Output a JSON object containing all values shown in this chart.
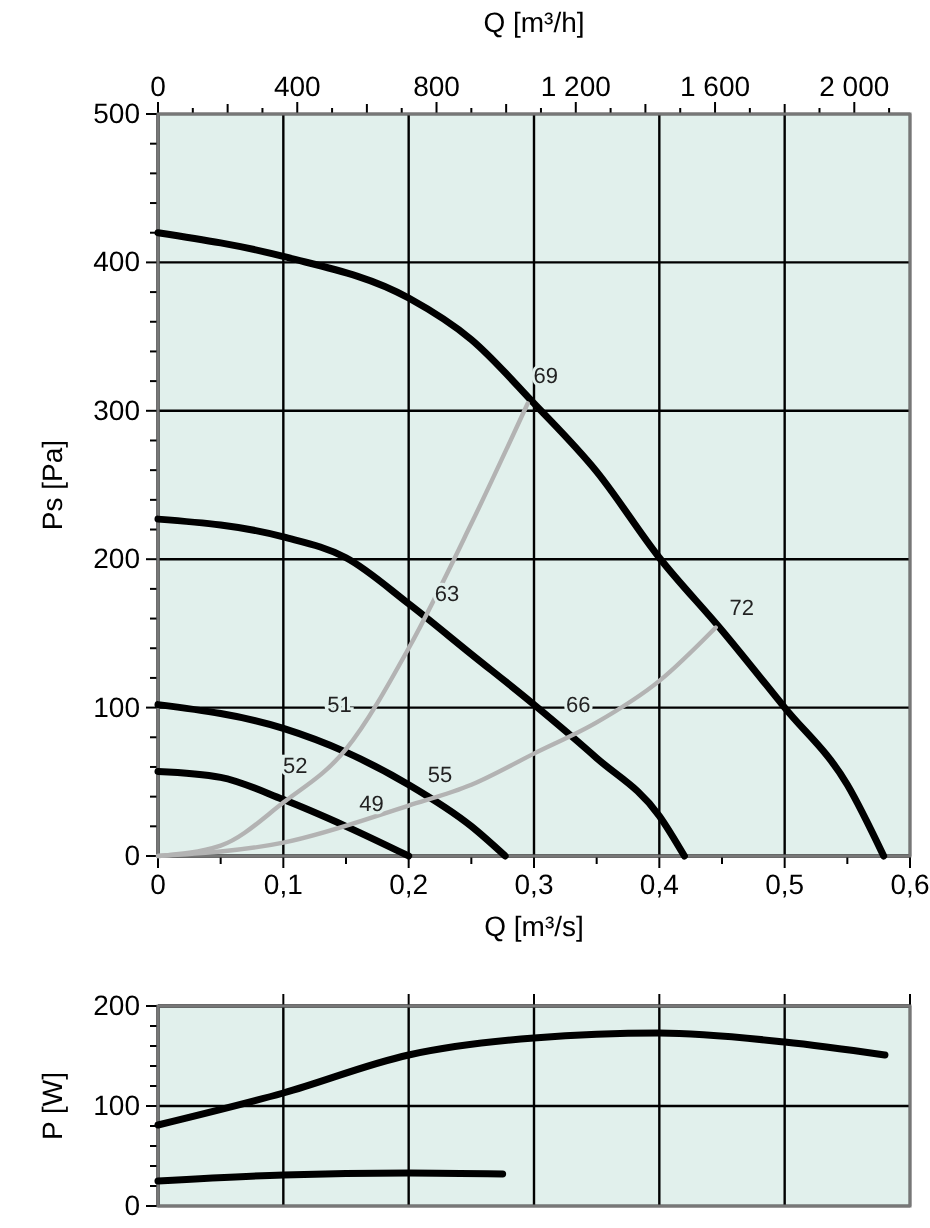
{
  "chart_data": [
    {
      "type": "line",
      "xlabel": "Q [m³/s]",
      "ylabel": "Ps [Pa]",
      "x2label": "Q [m³/h]",
      "xlim": [
        0,
        0.6
      ],
      "ylim": [
        0,
        500
      ],
      "x2lim": [
        0,
        2160
      ],
      "xticks": [
        0,
        {
          "value": 0.05,
          "label": null
        },
        {
          "value": 0.1,
          "label": "0,1"
        },
        {
          "value": 0.15,
          "label": null
        },
        {
          "value": 0.2,
          "label": "0,2"
        },
        {
          "value": 0.25,
          "label": null
        },
        {
          "value": 0.3,
          "label": "0,3"
        },
        {
          "value": 0.35,
          "label": null
        },
        {
          "value": 0.4,
          "label": "0,4"
        },
        {
          "value": 0.45,
          "label": null
        },
        {
          "value": 0.5,
          "label": "0,5"
        },
        {
          "value": 0.55,
          "label": null
        },
        {
          "value": 0.6,
          "label": "0,6"
        }
      ],
      "yticks": [
        0,
        {
          "value": 20,
          "label": null
        },
        {
          "value": 40,
          "label": null
        },
        {
          "value": 60,
          "label": null
        },
        {
          "value": 80,
          "label": null
        },
        100,
        {
          "value": 120,
          "label": null
        },
        {
          "value": 140,
          "label": null
        },
        {
          "value": 160,
          "label": null
        },
        {
          "value": 180,
          "label": null
        },
        200,
        {
          "value": 220,
          "label": null
        },
        {
          "value": 240,
          "label": null
        },
        {
          "value": 260,
          "label": null
        },
        {
          "value": 280,
          "label": null
        },
        300,
        {
          "value": 320,
          "label": null
        },
        {
          "value": 340,
          "label": null
        },
        {
          "value": 360,
          "label": null
        },
        {
          "value": 380,
          "label": null
        },
        400,
        {
          "value": 420,
          "label": null
        },
        {
          "value": 440,
          "label": null
        },
        {
          "value": 460,
          "label": null
        },
        {
          "value": 480,
          "label": null
        },
        500
      ],
      "x2ticks": [
        0,
        {
          "value": 200,
          "label": null
        },
        400,
        {
          "value": 600,
          "label": null
        },
        800,
        {
          "value": 1000,
          "label": null
        },
        {
          "value": 1200,
          "label": "1 200"
        },
        {
          "value": 1400,
          "label": null
        },
        {
          "value": 1600,
          "label": "1 600"
        },
        {
          "value": 1800,
          "label": null
        },
        {
          "value": 2000,
          "label": "2 000"
        }
      ],
      "grid": true,
      "marker": "none",
      "line_style": "solid",
      "series": [
        {
          "color": "#000000",
          "x": [
            0,
            0.1,
            0.2,
            0.25,
            0.3,
            0.35,
            0.4,
            0.45,
            0.5,
            0.55,
            0.579
          ],
          "values": [
            420,
            404,
            376,
            348,
            305,
            259,
            201,
            152,
            100,
            48,
            0
          ]
        },
        {
          "color": "#000000",
          "x": [
            0,
            0.1,
            0.15,
            0.2,
            0.25,
            0.3,
            0.35,
            0.4,
            0.42
          ],
          "values": [
            227,
            215,
            201,
            170,
            136,
            102,
            66,
            27,
            0
          ]
        },
        {
          "color": "#000000",
          "x": [
            0,
            0.1,
            0.15,
            0.2,
            0.25,
            0.277
          ],
          "values": [
            102,
            86,
            70,
            48,
            20,
            0
          ]
        },
        {
          "color": "#000000",
          "x": [
            0,
            0.05,
            0.1,
            0.15,
            0.2
          ],
          "values": [
            57,
            53,
            38,
            20,
            0
          ]
        },
        {
          "color": "#b3b3b3",
          "x": [
            0,
            0.05,
            0.1,
            0.15,
            0.2,
            0.25,
            0.295
          ],
          "values": [
            0,
            7,
            36,
            72,
            140,
            224,
            305
          ]
        },
        {
          "color": "#b3b3b3",
          "x": [
            0,
            0.1,
            0.2,
            0.25,
            0.3,
            0.35,
            0.4,
            0.445
          ],
          "values": [
            0,
            9,
            34,
            48,
            69,
            90,
            118,
            154
          ]
        }
      ],
      "annotations": [
        {
          "text": "69",
          "x": 0.295,
          "y": 305
        },
        {
          "text": "63",
          "x": 0.213,
          "y": 161
        },
        {
          "text": "51",
          "x": 0.148,
          "y": 71
        },
        {
          "text": "52",
          "x": 0.1,
          "y": 37
        },
        {
          "text": "49",
          "x": 0.148,
          "y": 21
        },
        {
          "text": "55",
          "x": 0.217,
          "y": 39
        },
        {
          "text": "66",
          "x": 0.329,
          "y": 81
        },
        {
          "text": "72",
          "x": 0.445,
          "y": 154
        }
      ]
    },
    {
      "type": "line",
      "ylabel": "P [W]",
      "xlim": [
        0,
        0.6
      ],
      "ylim": [
        0,
        200
      ],
      "tick_labels": "y",
      "xticks": [
        {
          "value": 0,
          "label": null
        },
        {
          "value": 0.1,
          "label": null
        },
        {
          "value": 0.2,
          "label": null
        },
        {
          "value": 0.3,
          "label": null
        },
        {
          "value": 0.4,
          "label": null
        },
        {
          "value": 0.5,
          "label": null
        },
        {
          "value": 0.6,
          "label": null
        }
      ],
      "yticks": [
        0,
        {
          "value": 20,
          "label": null
        },
        {
          "value": 40,
          "label": null
        },
        {
          "value": 60,
          "label": null
        },
        {
          "value": 80,
          "label": null
        },
        100,
        {
          "value": 120,
          "label": null
        },
        {
          "value": 140,
          "label": null
        },
        {
          "value": 160,
          "label": null
        },
        {
          "value": 180,
          "label": null
        },
        200
      ],
      "grid": true,
      "marker": "none",
      "line_style": "solid",
      "series": [
        {
          "color": "#000000",
          "x": [
            0,
            0.1,
            0.2,
            0.3,
            0.4,
            0.5,
            0.58
          ],
          "values": [
            81,
            113,
            151,
            168,
            173,
            164,
            151
          ]
        },
        {
          "color": "#000000",
          "x": [
            0,
            0.1,
            0.2,
            0.275
          ],
          "values": [
            25,
            31,
            33,
            32
          ]
        }
      ]
    }
  ]
}
